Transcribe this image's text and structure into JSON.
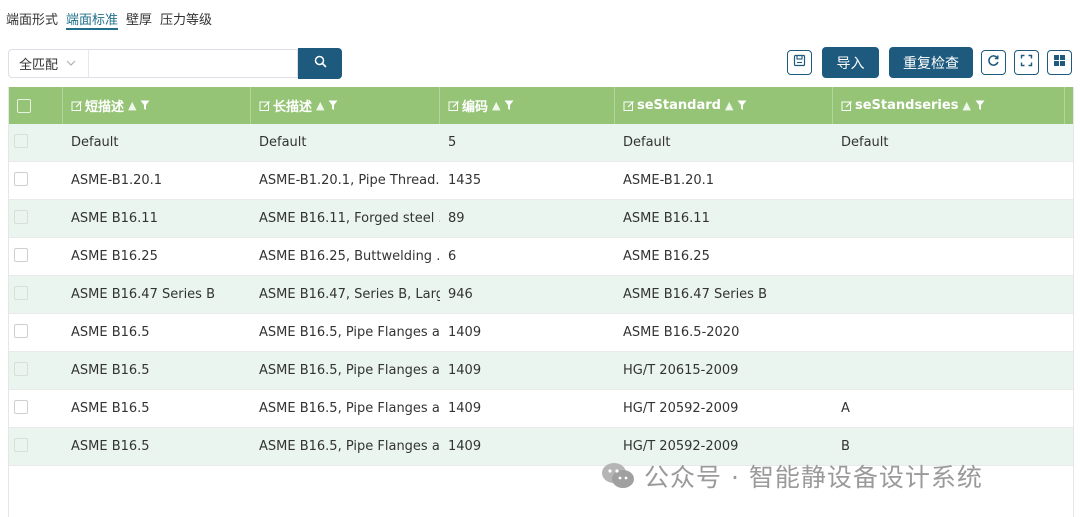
{
  "tabs": [
    {
      "label": "端面形式",
      "active": false
    },
    {
      "label": "端面标准",
      "active": true
    },
    {
      "label": "壁厚",
      "active": false
    },
    {
      "label": "压力等级",
      "active": false
    }
  ],
  "toolbar": {
    "match_mode": "全匹配",
    "search_value": "",
    "search_icon": "search-icon",
    "save_icon": "save-icon",
    "import_label": "导入",
    "recheck_label": "重复检查",
    "refresh_icon": "refresh-icon",
    "fullscreen_icon": "fullscreen-icon",
    "columns_icon": "grid-layout-icon"
  },
  "table": {
    "columns": [
      "短描述",
      "长描述",
      "编码",
      "seStandard",
      "seStandseries"
    ],
    "rows": [
      [
        "Default",
        "Default",
        "5",
        "Default",
        "Default"
      ],
      [
        "ASME-B1.20.1",
        "ASME-B1.20.1, Pipe Thread...",
        "1435",
        "ASME-B1.20.1",
        ""
      ],
      [
        "ASME B16.11",
        "ASME B16.11, Forged steel ...",
        "89",
        "ASME B16.11",
        ""
      ],
      [
        "ASME B16.25",
        "ASME B16.25, Buttwelding ...",
        "6",
        "ASME B16.25",
        ""
      ],
      [
        "ASME B16.47 Series B",
        "ASME B16.47, Series B, Larg...",
        "946",
        "ASME B16.47 Series B",
        ""
      ],
      [
        "ASME B16.5",
        "ASME B16.5, Pipe Flanges a...",
        "1409",
        "ASME B16.5-2020",
        ""
      ],
      [
        "ASME B16.5",
        "ASME B16.5, Pipe Flanges a...",
        "1409",
        "HG/T 20615-2009",
        ""
      ],
      [
        "ASME B16.5",
        "ASME B16.5, Pipe Flanges a...",
        "1409",
        "HG/T 20592-2009",
        "A"
      ],
      [
        "ASME B16.5",
        "ASME B16.5, Pipe Flanges a...",
        "1409",
        "HG/T 20592-2009",
        "B"
      ]
    ]
  },
  "watermark": {
    "text": "公众号 · 智能静设备设计系统",
    "icon": "wechat-icon"
  },
  "colors": {
    "accent": "#1d5a7e",
    "header_bg": "#96c477",
    "alt_row": "#eaf5f0"
  }
}
